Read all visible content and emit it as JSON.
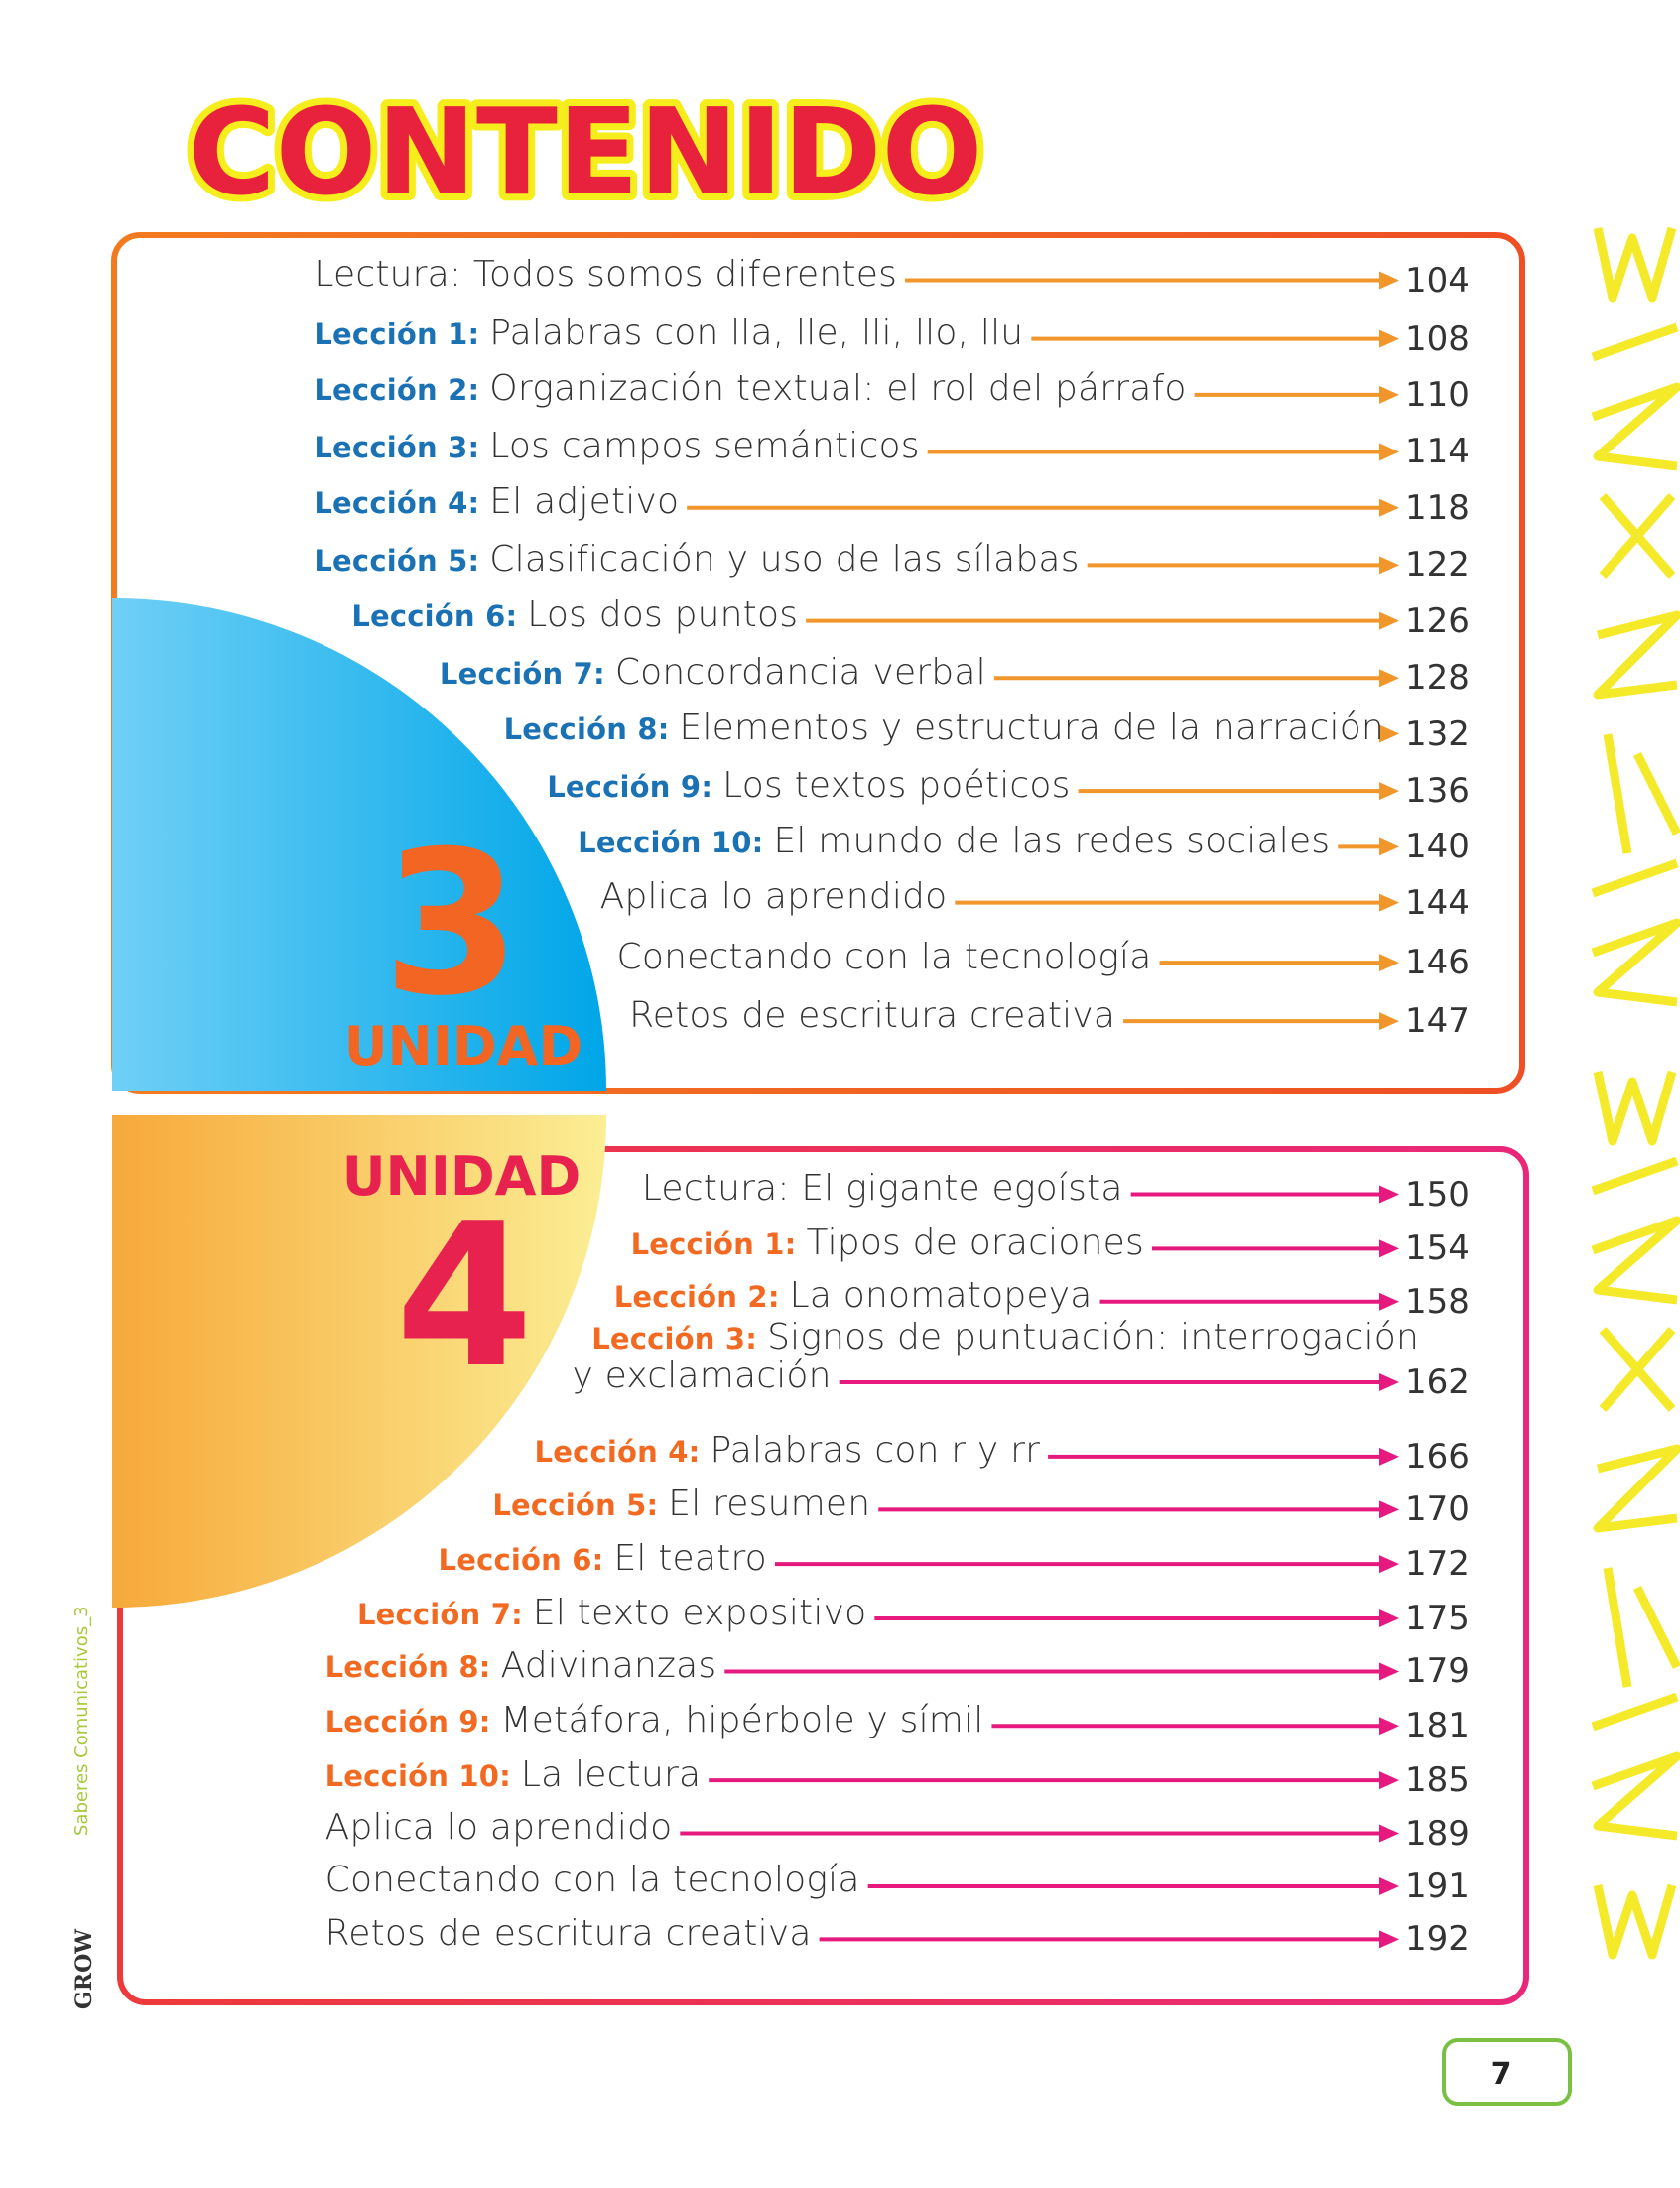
{
  "title": "CONTENIDO",
  "units": [
    {
      "label": "UNIDAD",
      "number": "3",
      "entries": [
        {
          "text": "Lectura: Todos somos diferentes",
          "page": 104
        },
        {
          "lesson": "Lección 1:",
          "text": "Palabras con lla, lle, lli, llo, llu",
          "page": 108
        },
        {
          "lesson": "Lección 2:",
          "text": "Organización textual: el rol del párrafo",
          "page": 110
        },
        {
          "lesson": "Lección 3:",
          "text": "Los campos semánticos",
          "page": 114
        },
        {
          "lesson": "Lección 4:",
          "text": "El adjetivo",
          "page": 118
        },
        {
          "lesson": "Lección 5:",
          "text": "Clasificación y uso de las sílabas",
          "page": 122
        },
        {
          "lesson": "Lección 6:",
          "text": "Los dos puntos",
          "page": 126
        },
        {
          "lesson": "Lección 7:",
          "text": "Concordancia verbal",
          "page": 128
        },
        {
          "lesson": "Lección 8:",
          "text": "Elementos y estructura de la narración",
          "page": 132
        },
        {
          "lesson": "Lección 9:",
          "text": "Los textos poéticos",
          "page": 136
        },
        {
          "lesson": "Lección 10:",
          "text": "El mundo de las redes sociales",
          "page": 140
        },
        {
          "text": "Aplica lo aprendido",
          "page": 144
        },
        {
          "text": "Conectando con la tecnología",
          "page": 146
        },
        {
          "text": "Retos de escritura creativa",
          "page": 147
        }
      ]
    },
    {
      "label": "UNIDAD",
      "number": "4",
      "entries": [
        {
          "text": "Lectura: El gigante egoísta",
          "page": 150
        },
        {
          "lesson": "Lección 1:",
          "text": "Tipos de oraciones",
          "page": 154
        },
        {
          "lesson": "Lección 2:",
          "text": "La onomatopeya",
          "page": 158
        },
        {
          "lesson": "Lección 3:",
          "text": "Signos de puntuación: interrogación y exclamación",
          "page": 162
        },
        {
          "lesson": "Lección 4:",
          "text": "Palabras con r y rr",
          "page": 166
        },
        {
          "lesson": "Lección 5:",
          "text": "El resumen",
          "page": 170
        },
        {
          "lesson": "Lección 6:",
          "text": "El teatro",
          "page": 172
        },
        {
          "lesson": "Lección 7:",
          "text": "El texto expositivo",
          "page": 175
        },
        {
          "lesson": "Lección 8:",
          "text": "Adivinanzas",
          "page": 179
        },
        {
          "lesson": "Lección 9:",
          "text": "Metáfora, hipérbole y símil",
          "page": 181
        },
        {
          "lesson": "Lección 10:",
          "text": "La lectura",
          "page": 185
        },
        {
          "text": "Aplica lo aprendido",
          "page": 189
        },
        {
          "text": "Conectando con la tecnología",
          "page": 191
        },
        {
          "text": "Retos de escritura creativa",
          "page": 192
        }
      ]
    }
  ],
  "side_text": "Saberes Comunicativos_3",
  "logo": "GROW",
  "page_number": "7"
}
